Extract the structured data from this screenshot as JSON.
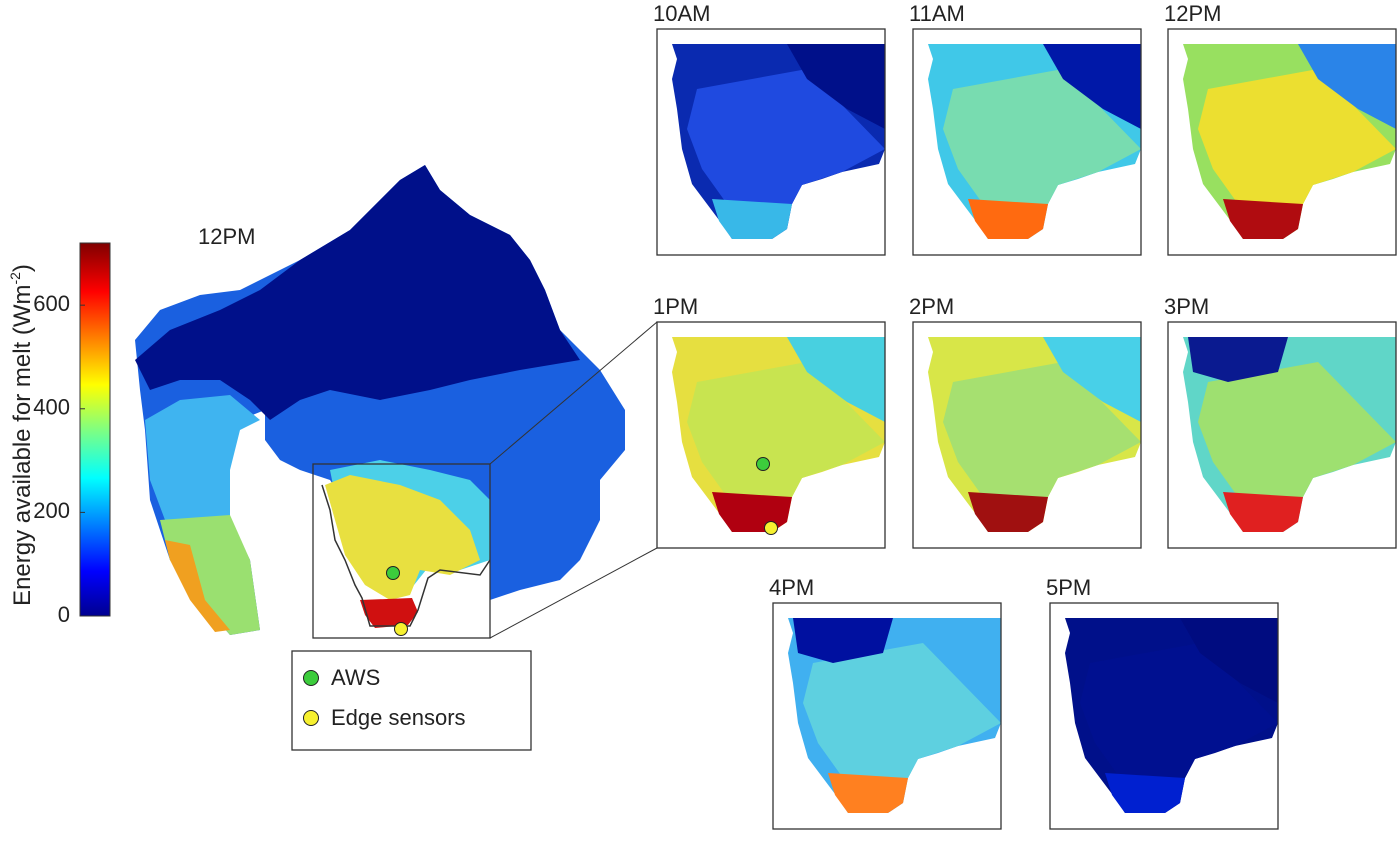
{
  "colorbar": {
    "label": "Energy available for melt (Wm",
    "label_superscript": "-2",
    "label_end": ")",
    "ylim": [
      0,
      720
    ],
    "yticks": [
      0,
      200,
      400,
      600
    ]
  },
  "main_panel": {
    "title": "12PM"
  },
  "panels": [
    {
      "title": "10AM"
    },
    {
      "title": "11AM"
    },
    {
      "title": "12PM"
    },
    {
      "title": "1PM"
    },
    {
      "title": "2PM"
    },
    {
      "title": "3PM"
    },
    {
      "title": "4PM"
    },
    {
      "title": "5PM"
    }
  ],
  "legend": [
    {
      "label": "AWS",
      "color": "#3ccc3c"
    },
    {
      "label": "Edge sensors",
      "color": "#f6f030"
    }
  ]
}
